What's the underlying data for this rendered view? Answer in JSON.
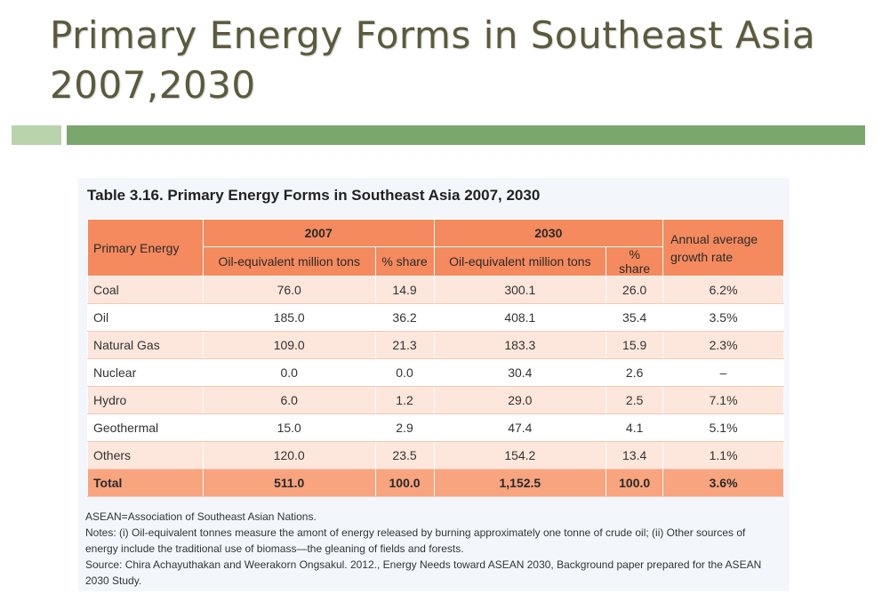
{
  "slide": {
    "title_line1": "Primary Energy Forms in Southeast Asia",
    "title_line2": "2007,2030"
  },
  "table": {
    "caption": "Table 3.16. Primary Energy Forms in Southeast Asia 2007, 2030",
    "headers": {
      "primary_energy": "Primary Energy",
      "year_2007": "2007",
      "year_2030": "2030",
      "growth_line1": "Annual average",
      "growth_line2": "growth rate",
      "oil_equiv_2007": "Oil-equivalent million tons",
      "share_2007": "% share",
      "oil_equiv_2030": "Oil-equivalent million tons",
      "share_2030": "% share"
    },
    "rows": [
      [
        "Coal",
        "76.0",
        "14.9",
        "300.1",
        "26.0",
        "6.2%"
      ],
      [
        "Oil",
        "185.0",
        "36.2",
        "408.1",
        "35.4",
        "3.5%"
      ],
      [
        "Natural Gas",
        "109.0",
        "21.3",
        "183.3",
        "15.9",
        "2.3%"
      ],
      [
        "Nuclear",
        "0.0",
        "0.0",
        "30.4",
        "2.6",
        "–"
      ],
      [
        "Hydro",
        "6.0",
        "1.2",
        "29.0",
        "2.5",
        "7.1%"
      ],
      [
        "Geothermal",
        "15.0",
        "2.9",
        "47.4",
        "4.1",
        "5.1%"
      ],
      [
        "Others",
        "120.0",
        "23.5",
        "154.2",
        "13.4",
        "1.1%"
      ]
    ],
    "total": [
      "Total",
      "511.0",
      "100.0",
      "1,152.5",
      "100.0",
      "3.6%"
    ],
    "notes": {
      "abbrev": "ASEAN=Association of Southeast Asian Nations.",
      "notes": "Notes: (i) Oil-equivalent tonnes measure the amont of energy released by burning approximately one tonne of crude oil; (ii) Other sources of energy include the traditional use of biomass—the gleaning of fields and forests.",
      "source": "Source: Chira Achayuthakan and Weerakorn Ongsakul. 2012., Energy Needs toward ASEAN 2030, Background paper prepared for the ASEAN 2030 Study."
    }
  },
  "colors": {
    "title": "#5b5a3c",
    "bar_light": "#b9d3ad",
    "bar_dark": "#7aa86c",
    "header_orange": "#f58a5e",
    "row_tint": "#fde6db",
    "total_row": "#f7a47f"
  }
}
